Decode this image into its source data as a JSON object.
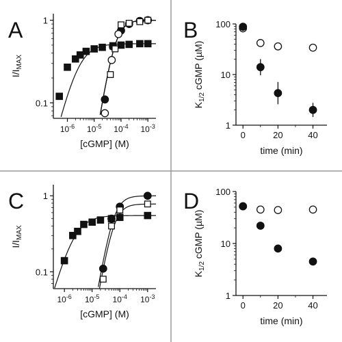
{
  "chart_data": [
    {
      "panel": "A",
      "type": "scatter",
      "xscale": "log",
      "yscale": "log",
      "xlim": [
        3e-07,
        0.002
      ],
      "ylim": [
        0.065,
        1.2
      ],
      "xticks": [
        {
          "v": 1e-06,
          "mant": "10",
          "exp": "-6"
        },
        {
          "v": 1e-05,
          "mant": "10",
          "exp": "-5"
        },
        {
          "v": 0.0001,
          "mant": "10",
          "exp": "-4"
        },
        {
          "v": 0.001,
          "mant": "10",
          "exp": "-3"
        }
      ],
      "yticks": [
        {
          "v": 0.1,
          "label": "0.1"
        },
        {
          "v": 1,
          "label": "1"
        }
      ],
      "xlabel": "[cGMP] (M)",
      "ylabel_main": "I/I",
      "ylabel_sub": "MAX",
      "series": [
        {
          "marker": "filled-square",
          "fit": {
            "imax": 0.52,
            "k": 2.5e-06,
            "n": 1.3
          },
          "x": [
            5e-07,
            1e-06,
            2e-06,
            3e-06,
            5e-06,
            1e-05,
            2e-05,
            5e-05,
            0.0001,
            0.0002,
            0.0005,
            0.001
          ],
          "y": [
            0.12,
            0.27,
            0.34,
            0.38,
            0.42,
            0.45,
            0.47,
            0.49,
            0.5,
            0.51,
            0.52,
            0.52
          ]
        },
        {
          "marker": "filled-circle",
          "fit": {
            "imax": 1.0,
            "k": 6e-05,
            "n": 2.0
          },
          "x": [
            2.5e-05,
            5e-05,
            0.0001,
            0.0002,
            0.0005,
            0.001
          ],
          "y": [
            0.11,
            0.48,
            0.75,
            0.9,
            0.98,
            1.0
          ]
        },
        {
          "marker": "open-circle",
          "fit": {
            "imax": 1.0,
            "k": 6e-05,
            "n": 2.0
          },
          "x": [
            2.5e-05,
            4.5e-05,
            8e-05
          ],
          "y": [
            0.075,
            0.33,
            0.68
          ]
        },
        {
          "marker": "open-square",
          "fit": {
            "imax": 1.0,
            "k": 6e-05,
            "n": 2.0
          },
          "x": [
            4e-05,
            6e-05,
            0.0001,
            0.0002,
            0.0005,
            0.001
          ],
          "y": [
            0.22,
            0.45,
            0.88,
            0.92,
            0.96,
            1.0
          ]
        }
      ]
    },
    {
      "panel": "B",
      "type": "scatter",
      "xscale": "linear",
      "yscale": "log",
      "xlim": [
        -4,
        48
      ],
      "ylim": [
        1,
        100
      ],
      "xticks": [
        {
          "v": 0,
          "label": "0"
        },
        {
          "v": 20,
          "label": "20"
        },
        {
          "v": 40,
          "label": "40"
        }
      ],
      "xminor": [
        10,
        30
      ],
      "yticks": [
        {
          "v": 1,
          "label": "1"
        },
        {
          "v": 10,
          "label": "10"
        },
        {
          "v": 100,
          "label": "100"
        }
      ],
      "xlabel": "time (min)",
      "ylabel_main": "K",
      "ylabel_sub": "1/2",
      "ylabel_rest": " cGMP (µM)",
      "series": [
        {
          "marker": "open-circle",
          "x": [
            0,
            10,
            20,
            40
          ],
          "y": [
            82,
            42,
            36,
            34
          ],
          "err": [
            0.08,
            0.06,
            0.06,
            0.0
          ]
        },
        {
          "marker": "filled-circle",
          "x": [
            0,
            10,
            20,
            40
          ],
          "y": [
            88,
            14,
            4.3,
            2.0
          ],
          "err": [
            0.0,
            0.16,
            0.22,
            0.14
          ]
        }
      ]
    },
    {
      "panel": "C",
      "type": "scatter",
      "xscale": "log",
      "yscale": "log",
      "xlim": [
        4e-07,
        0.002
      ],
      "ylim": [
        0.06,
        1.4
      ],
      "xticks": [
        {
          "v": 1e-06,
          "mant": "10",
          "exp": "-6"
        },
        {
          "v": 1e-05,
          "mant": "10",
          "exp": "-5"
        },
        {
          "v": 0.0001,
          "mant": "10",
          "exp": "-4"
        },
        {
          "v": 0.001,
          "mant": "10",
          "exp": "-3"
        }
      ],
      "yticks": [
        {
          "v": 0.1,
          "label": "0.1"
        },
        {
          "v": 1,
          "label": "1"
        }
      ],
      "xlabel": "[cGMP] (M)",
      "ylabel_main": "I/I",
      "ylabel_sub": "MAX",
      "series": [
        {
          "marker": "filled-square",
          "fit": {
            "imax": 0.55,
            "k": 2.2e-06,
            "n": 1.3
          },
          "x": [
            1e-06,
            2e-06,
            3e-06,
            5e-06,
            1e-05,
            2e-05,
            5e-05,
            0.0001,
            0.001
          ],
          "y": [
            0.14,
            0.3,
            0.34,
            0.42,
            0.45,
            0.48,
            0.5,
            0.52,
            0.55
          ]
        },
        {
          "marker": "filled-circle",
          "fit": {
            "imax": 1.0,
            "k": 6e-05,
            "n": 2.1
          },
          "x": [
            2.5e-05,
            5e-05,
            0.0001,
            0.001
          ],
          "y": [
            0.11,
            0.5,
            0.72,
            1.0
          ]
        },
        {
          "marker": "open-square",
          "fit": {
            "imax": 0.78,
            "k": 6e-05,
            "n": 2.1
          },
          "x": [
            2.5e-05,
            5e-05,
            0.0001,
            0.001
          ],
          "y": [
            0.08,
            0.4,
            0.65,
            0.78
          ]
        }
      ]
    },
    {
      "panel": "D",
      "type": "scatter",
      "xscale": "linear",
      "yscale": "log",
      "xlim": [
        -4,
        48
      ],
      "ylim": [
        1,
        100
      ],
      "xticks": [
        {
          "v": 0,
          "label": "0"
        },
        {
          "v": 20,
          "label": "20"
        },
        {
          "v": 40,
          "label": "40"
        }
      ],
      "xminor": [
        10,
        30
      ],
      "yticks": [
        {
          "v": 1,
          "label": "1"
        },
        {
          "v": 10,
          "label": "10"
        },
        {
          "v": 100,
          "label": "100"
        }
      ],
      "xlabel": "time (min)",
      "ylabel_main": "K",
      "ylabel_sub": "1/2",
      "ylabel_rest": " cGMP (µM)",
      "series": [
        {
          "marker": "open-circle",
          "x": [
            0,
            10,
            20,
            40
          ],
          "y": [
            52,
            45,
            44,
            45
          ],
          "err": [
            0.0,
            0.04,
            0.04,
            0.04
          ]
        },
        {
          "marker": "filled-circle",
          "x": [
            0,
            10,
            20,
            40
          ],
          "y": [
            52,
            22,
            8,
            4.5
          ],
          "err": [
            0.0,
            0.0,
            0.0,
            0.0
          ]
        }
      ]
    }
  ]
}
